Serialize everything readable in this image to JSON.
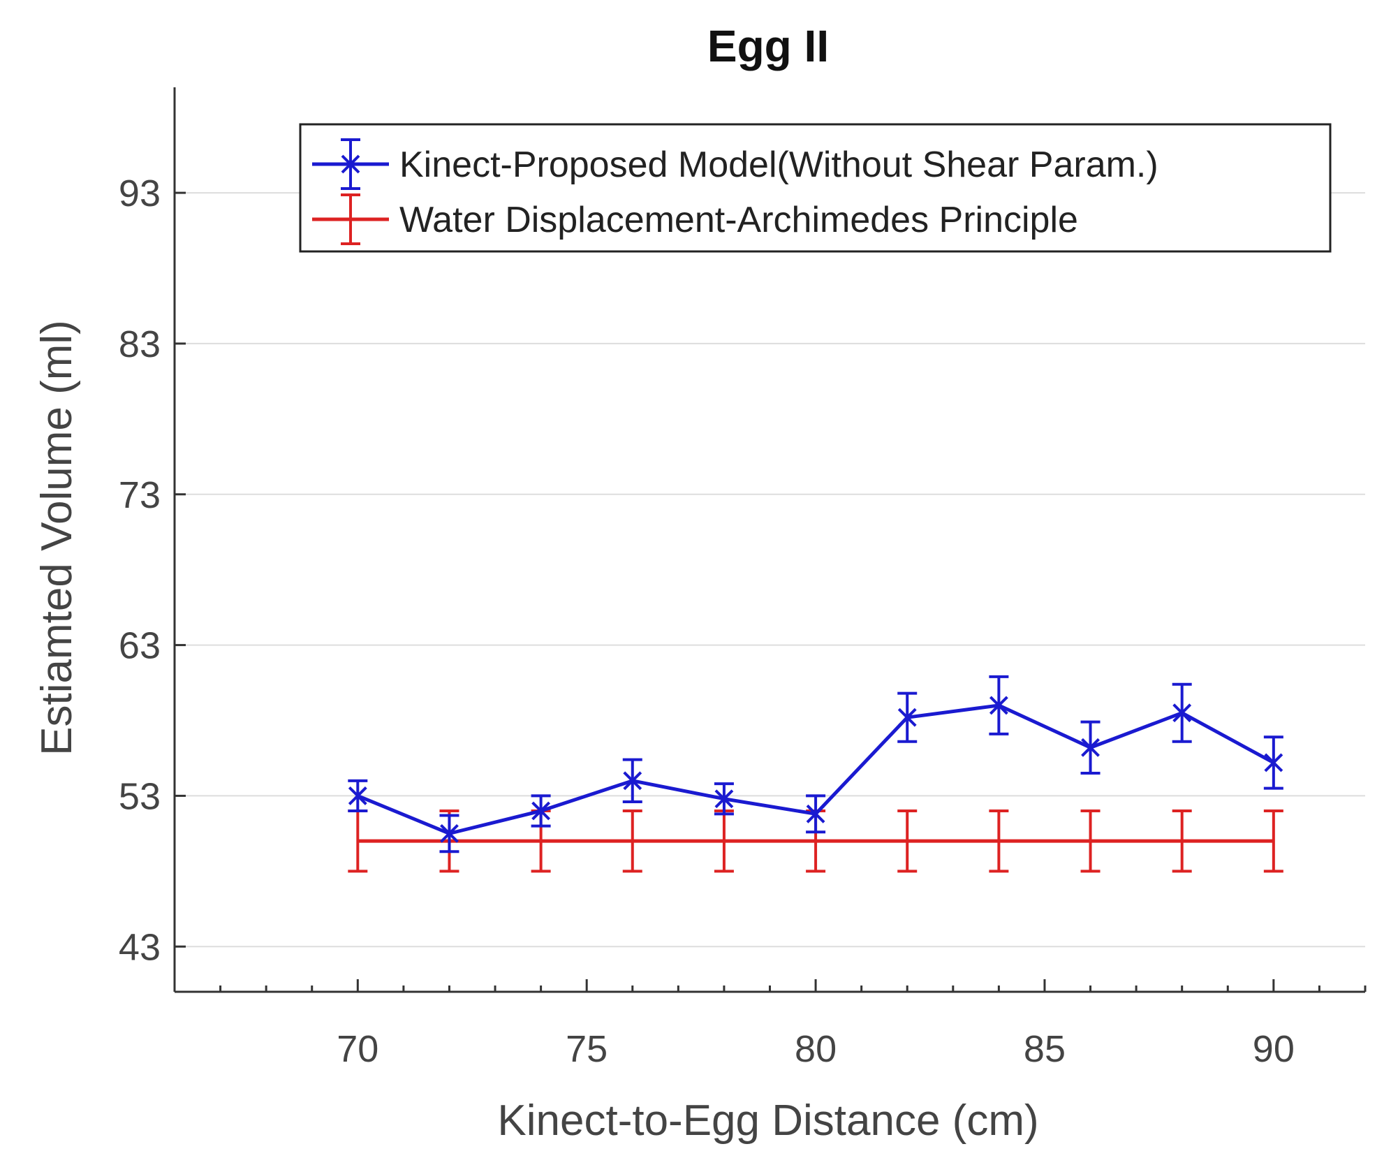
{
  "chart_data": {
    "type": "line",
    "title": "Egg II",
    "xlabel": "Kinect-to-Egg Distance (cm)",
    "ylabel": "Estiamted Volume (ml)",
    "xlim": [
      66,
      92
    ],
    "ylim": [
      40,
      100
    ],
    "xticks": [
      70,
      75,
      80,
      85,
      90
    ],
    "yticks": [
      43,
      53,
      63,
      73,
      83,
      93
    ],
    "x_minor_step": 1,
    "grid": true,
    "legend_position": "top-right",
    "x": [
      70,
      72,
      74,
      76,
      78,
      80,
      82,
      84,
      86,
      88,
      90
    ],
    "series": [
      {
        "name": "Kinect-Proposed Model(Without Shear Param.)",
        "color": "#1a1ad0",
        "marker": "x",
        "values": [
          53.0,
          50.5,
          52.0,
          54.0,
          52.8,
          51.8,
          58.2,
          59.0,
          56.2,
          58.5,
          55.2
        ],
        "errors": [
          1.0,
          1.2,
          1.0,
          1.4,
          1.0,
          1.2,
          1.6,
          1.9,
          1.7,
          1.9,
          1.7
        ]
      },
      {
        "name": "Water Displacement-Archimedes Principle",
        "color": "#dd2222",
        "marker": "none",
        "values": [
          50.0,
          50.0,
          50.0,
          50.0,
          50.0,
          50.0,
          50.0,
          50.0,
          50.0,
          50.0,
          50.0
        ],
        "errors": [
          2.0,
          2.0,
          2.0,
          2.0,
          2.0,
          2.0,
          2.0,
          2.0,
          2.0,
          2.0,
          2.0
        ]
      }
    ]
  }
}
